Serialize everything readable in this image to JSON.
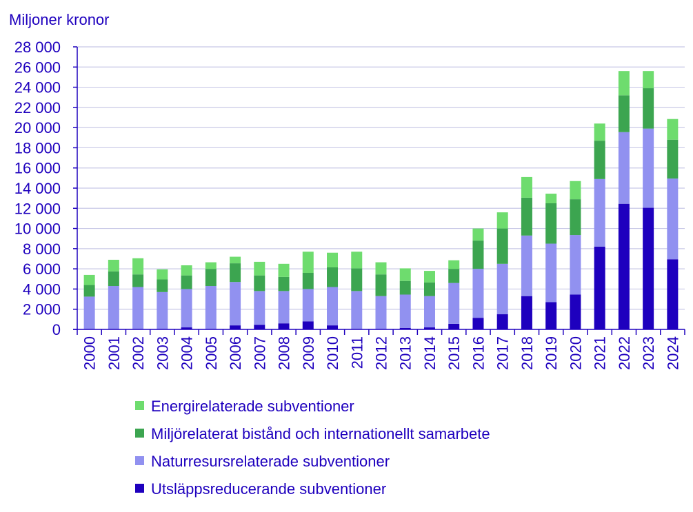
{
  "chart_data": {
    "type": "bar",
    "stacked": true,
    "ylabel": "Miljoner kronor",
    "ylim": [
      0,
      28000
    ],
    "yticks": [
      0,
      2000,
      4000,
      6000,
      8000,
      10000,
      12000,
      14000,
      16000,
      18000,
      20000,
      22000,
      24000,
      26000,
      28000
    ],
    "ytick_labels": [
      "0",
      "2 000",
      "4 000",
      "6 000",
      "8 000",
      "10 000",
      "12 000",
      "14 000",
      "16 000",
      "18 000",
      "20 000",
      "22 000",
      "24 000",
      "26 000",
      "28 000"
    ],
    "grid": "horizontal",
    "legend_position": "bottom",
    "categories": [
      "2000",
      "2001",
      "2002",
      "2003",
      "2004",
      "2005",
      "2006",
      "2007",
      "2008",
      "2009",
      "2010",
      "2011",
      "2012",
      "2013",
      "2014",
      "2015",
      "2016",
      "2017",
      "2018",
      "2019",
      "2020",
      "2021",
      "2022",
      "2023",
      "2024"
    ],
    "series": [
      {
        "name": "Utsläppsreducerande subventioner",
        "color": "#1E00BE",
        "values": [
          0,
          0,
          0,
          0,
          200,
          0,
          400,
          450,
          600,
          800,
          400,
          0,
          0,
          150,
          200,
          550,
          1150,
          1500,
          3300,
          2700,
          3450,
          8200,
          12450,
          12050,
          6950
        ]
      },
      {
        "name": "Naturresursrelaterade subventioner",
        "color": "#9191F0",
        "values": [
          3250,
          4300,
          4200,
          3700,
          3800,
          4300,
          4300,
          3350,
          3200,
          3200,
          3800,
          3800,
          3300,
          3300,
          3100,
          4050,
          4850,
          5000,
          6000,
          5800,
          5900,
          6700,
          7100,
          7850,
          8000
        ]
      },
      {
        "name": "Miljörelaterat bistånd och internationellt samarbete",
        "color": "#3CA550",
        "values": [
          1150,
          1450,
          1250,
          1250,
          1350,
          1700,
          1850,
          1550,
          1400,
          1600,
          1950,
          2250,
          2150,
          1350,
          1350,
          1400,
          2800,
          3500,
          3750,
          4000,
          3550,
          3800,
          3650,
          4000,
          3850
        ]
      },
      {
        "name": "Energirelaterade subventioner",
        "color": "#6EDC6E",
        "values": [
          1000,
          1150,
          1600,
          1000,
          1000,
          650,
          650,
          1350,
          1300,
          2100,
          1450,
          1650,
          1200,
          1250,
          1150,
          850,
          1200,
          1600,
          2050,
          950,
          1800,
          1700,
          2400,
          1700,
          2050
        ]
      }
    ]
  }
}
